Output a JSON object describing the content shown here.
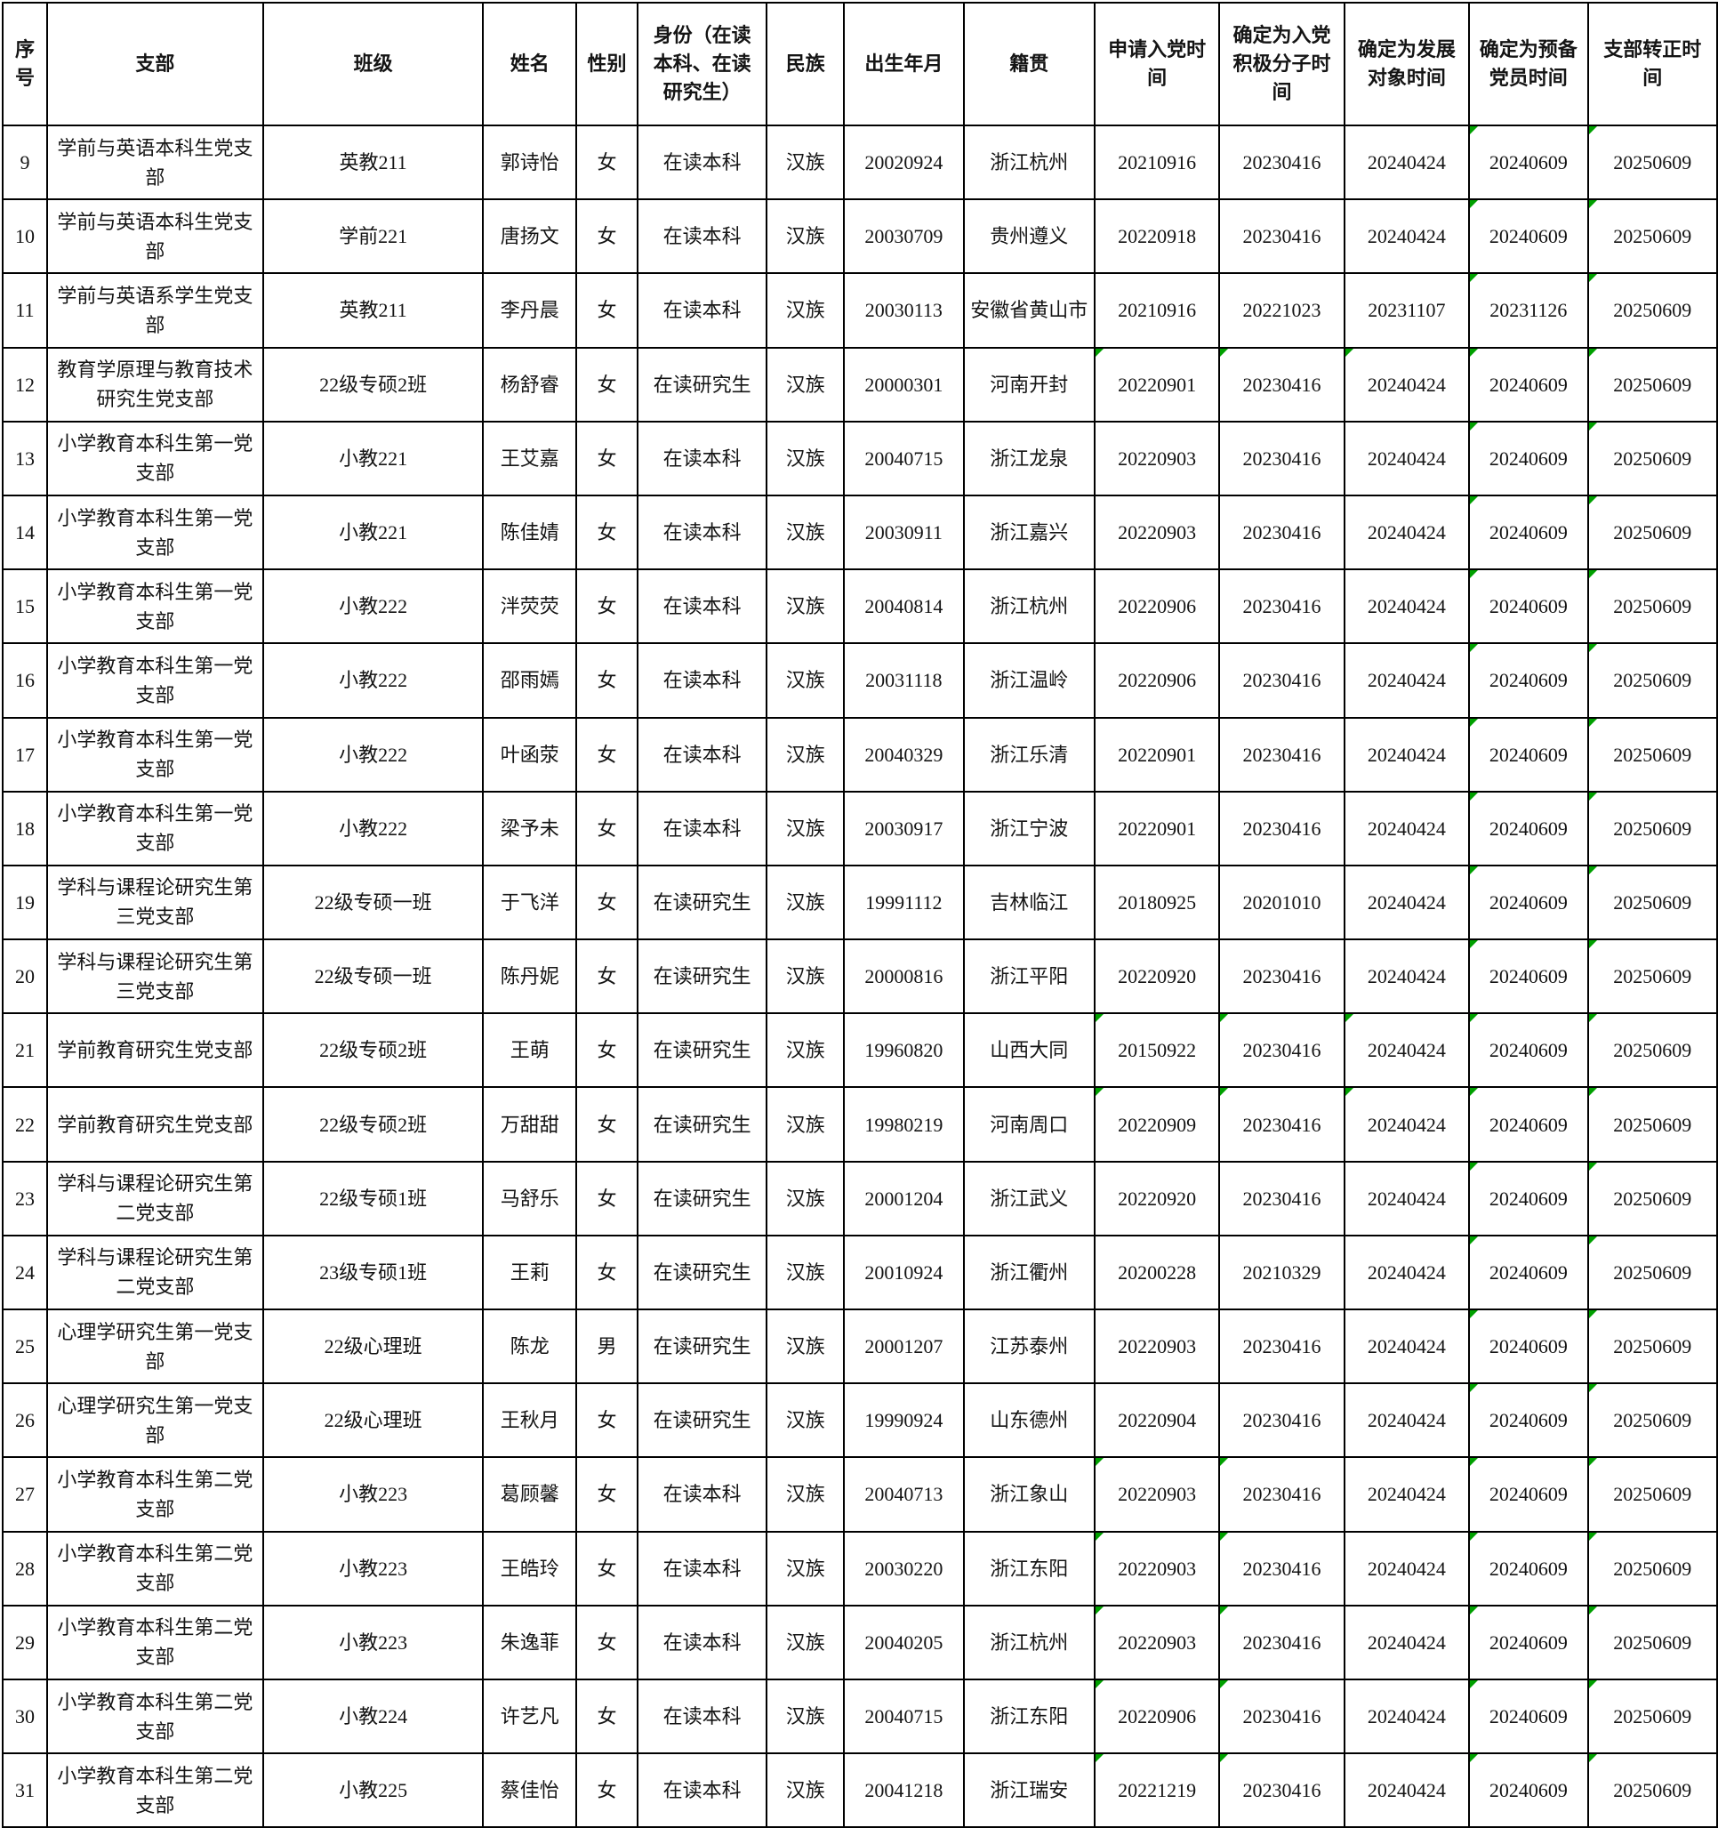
{
  "colors": {
    "flag_green": "#00a000",
    "grid_border": "#000000",
    "text": "#141414",
    "background": "#ffffff"
  },
  "table": {
    "columns": [
      {
        "key": "index",
        "label": "序号"
      },
      {
        "key": "branch",
        "label": "支部"
      },
      {
        "key": "class",
        "label": "班级"
      },
      {
        "key": "name",
        "label": "姓名"
      },
      {
        "key": "gender",
        "label": "性别"
      },
      {
        "key": "identity",
        "label": "身份（在读本科、在读研究生）"
      },
      {
        "key": "ethnicity",
        "label": "民族"
      },
      {
        "key": "birth-date",
        "label": "出生年月"
      },
      {
        "key": "hometown",
        "label": "籍贯"
      },
      {
        "key": "apply-date",
        "label": "申请入党时间"
      },
      {
        "key": "activist-date",
        "label": "确定为入党积极分子时间"
      },
      {
        "key": "candidate-date",
        "label": "确定为发展对象时间"
      },
      {
        "key": "probation-date",
        "label": "确定为预备党员时间"
      },
      {
        "key": "full-member-date",
        "label": "支部转正时间"
      }
    ],
    "rows": [
      {
        "cells": [
          "9",
          "学前与英语本科生党支部",
          "英教211",
          "郭诗怡",
          "女",
          "在读本科",
          "汉族",
          "20020924",
          "浙江杭州",
          "20210916",
          "20230416",
          "20240424",
          "20240609",
          "20250609"
        ],
        "flags": [
          12,
          13
        ]
      },
      {
        "cells": [
          "10",
          "学前与英语本科生党支部",
          "学前221",
          "唐扬文",
          "女",
          "在读本科",
          "汉族",
          "20030709",
          "贵州遵义",
          "20220918",
          "20230416",
          "20240424",
          "20240609",
          "20250609"
        ],
        "flags": [
          12,
          13
        ]
      },
      {
        "cells": [
          "11",
          "学前与英语系学生党支部",
          "英教211",
          "李丹晨",
          "女",
          "在读本科",
          "汉族",
          "20030113",
          "安徽省黄山市",
          "20210916",
          "20221023",
          "20231107",
          "20231126",
          "20250609"
        ],
        "flags": [
          12,
          13
        ]
      },
      {
        "cells": [
          "12",
          "教育学原理与教育技术研究生党支部",
          "22级专硕2班",
          "杨舒睿",
          "女",
          "在读研究生",
          "汉族",
          "20000301",
          "河南开封",
          "20220901",
          "20230416",
          "20240424",
          "20240609",
          "20250609"
        ],
        "flags": [
          9,
          10,
          11,
          12,
          13
        ]
      },
      {
        "cells": [
          "13",
          "小学教育本科生第一党支部",
          "小教221",
          "王艾嘉",
          "女",
          "在读本科",
          "汉族",
          "20040715",
          "浙江龙泉",
          "20220903",
          "20230416",
          "20240424",
          "20240609",
          "20250609"
        ],
        "flags": [
          12,
          13
        ]
      },
      {
        "cells": [
          "14",
          "小学教育本科生第一党支部",
          "小教221",
          "陈佳婧",
          "女",
          "在读本科",
          "汉族",
          "20030911",
          "浙江嘉兴",
          "20220903",
          "20230416",
          "20240424",
          "20240609",
          "20250609"
        ],
        "flags": [
          12,
          13
        ]
      },
      {
        "cells": [
          "15",
          "小学教育本科生第一党支部",
          "小教222",
          "泮荧荧",
          "女",
          "在读本科",
          "汉族",
          "20040814",
          "浙江杭州",
          "20220906",
          "20230416",
          "20240424",
          "20240609",
          "20250609"
        ],
        "flags": [
          12,
          13
        ]
      },
      {
        "cells": [
          "16",
          "小学教育本科生第一党支部",
          "小教222",
          "邵雨嫣",
          "女",
          "在读本科",
          "汉族",
          "20031118",
          "浙江温岭",
          "20220906",
          "20230416",
          "20240424",
          "20240609",
          "20250609"
        ],
        "flags": [
          12,
          13
        ]
      },
      {
        "cells": [
          "17",
          "小学教育本科生第一党支部",
          "小教222",
          "叶函荥",
          "女",
          "在读本科",
          "汉族",
          "20040329",
          "浙江乐清",
          "20220901",
          "20230416",
          "20240424",
          "20240609",
          "20250609"
        ],
        "flags": [
          12,
          13
        ]
      },
      {
        "cells": [
          "18",
          "小学教育本科生第一党支部",
          "小教222",
          "梁予未",
          "女",
          "在读本科",
          "汉族",
          "20030917",
          "浙江宁波",
          "20220901",
          "20230416",
          "20240424",
          "20240609",
          "20250609"
        ],
        "flags": [
          12,
          13
        ]
      },
      {
        "cells": [
          "19",
          "学科与课程论研究生第三党支部",
          "22级专硕一班",
          "于飞洋",
          "女",
          "在读研究生",
          "汉族",
          "19991112",
          "吉林临江",
          "20180925",
          "20201010",
          "20240424",
          "20240609",
          "20250609"
        ],
        "flags": [
          12,
          13
        ]
      },
      {
        "cells": [
          "20",
          "学科与课程论研究生第三党支部",
          "22级专硕一班",
          "陈丹妮",
          "女",
          "在读研究生",
          "汉族",
          "20000816",
          "浙江平阳",
          "20220920",
          "20230416",
          "20240424",
          "20240609",
          "20250609"
        ],
        "flags": [
          12,
          13
        ]
      },
      {
        "cells": [
          "21",
          "学前教育研究生党支部",
          "22级专硕2班",
          "王萌",
          "女",
          "在读研究生",
          "汉族",
          "19960820",
          "山西大同",
          "20150922",
          "20230416",
          "20240424",
          "20240609",
          "20250609"
        ],
        "flags": [
          9,
          10,
          11,
          12,
          13
        ]
      },
      {
        "cells": [
          "22",
          "学前教育研究生党支部",
          "22级专硕2班",
          "万甜甜",
          "女",
          "在读研究生",
          "汉族",
          "19980219",
          "河南周口",
          "20220909",
          "20230416",
          "20240424",
          "20240609",
          "20250609"
        ],
        "flags": [
          9,
          10,
          11,
          12,
          13
        ]
      },
      {
        "cells": [
          "23",
          "学科与课程论研究生第二党支部",
          "22级专硕1班",
          "马舒乐",
          "女",
          "在读研究生",
          "汉族",
          "20001204",
          "浙江武义",
          "20220920",
          "20230416",
          "20240424",
          "20240609",
          "20250609"
        ],
        "flags": [
          12,
          13
        ]
      },
      {
        "cells": [
          "24",
          "学科与课程论研究生第二党支部",
          "23级专硕1班",
          "王莉",
          "女",
          "在读研究生",
          "汉族",
          "20010924",
          "浙江衢州",
          "20200228",
          "20210329",
          "20240424",
          "20240609",
          "20250609"
        ],
        "flags": [
          12,
          13
        ]
      },
      {
        "cells": [
          "25",
          "心理学研究生第一党支部",
          "22级心理班",
          "陈龙",
          "男",
          "在读研究生",
          "汉族",
          "20001207",
          "江苏泰州",
          "20220903",
          "20230416",
          "20240424",
          "20240609",
          "20250609"
        ],
        "flags": [
          12,
          13
        ]
      },
      {
        "cells": [
          "26",
          "心理学研究生第一党支部",
          "22级心理班",
          "王秋月",
          "女",
          "在读研究生",
          "汉族",
          "19990924",
          "山东德州",
          "20220904",
          "20230416",
          "20240424",
          "20240609",
          "20250609"
        ],
        "flags": [
          12,
          13
        ]
      },
      {
        "cells": [
          "27",
          "小学教育本科生第二党支部",
          "小教223",
          "葛顾馨",
          "女",
          "在读本科",
          "汉族",
          "20040713",
          "浙江象山",
          "20220903",
          "20230416",
          "20240424",
          "20240609",
          "20250609"
        ],
        "flags": [
          9,
          10,
          12,
          13
        ]
      },
      {
        "cells": [
          "28",
          "小学教育本科生第二党支部",
          "小教223",
          "王皓玲",
          "女",
          "在读本科",
          "汉族",
          "20030220",
          "浙江东阳",
          "20220903",
          "20230416",
          "20240424",
          "20240609",
          "20250609"
        ],
        "flags": [
          9,
          10,
          12,
          13
        ]
      },
      {
        "cells": [
          "29",
          "小学教育本科生第二党支部",
          "小教223",
          "朱逸菲",
          "女",
          "在读本科",
          "汉族",
          "20040205",
          "浙江杭州",
          "20220903",
          "20230416",
          "20240424",
          "20240609",
          "20250609"
        ],
        "flags": [
          9,
          10,
          12,
          13
        ]
      },
      {
        "cells": [
          "30",
          "小学教育本科生第二党支部",
          "小教224",
          "许艺凡",
          "女",
          "在读本科",
          "汉族",
          "20040715",
          "浙江东阳",
          "20220906",
          "20230416",
          "20240424",
          "20240609",
          "20250609"
        ],
        "flags": [
          9,
          10,
          12,
          13
        ]
      },
      {
        "cells": [
          "31",
          "小学教育本科生第二党支部",
          "小教225",
          "蔡佳怡",
          "女",
          "在读本科",
          "汉族",
          "20041218",
          "浙江瑞安",
          "20221219",
          "20230416",
          "20240424",
          "20240609",
          "20250609"
        ],
        "flags": [
          9,
          10,
          12,
          13
        ]
      }
    ]
  }
}
